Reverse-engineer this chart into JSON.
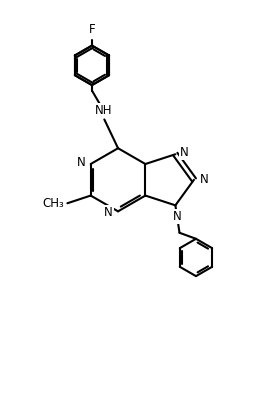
{
  "background_color": "#ffffff",
  "line_color": "#000000",
  "text_color": "#000000",
  "line_width": 1.5,
  "font_size": 8.5,
  "fig_width": 2.8,
  "fig_height": 3.98,
  "dpi": 100,
  "xlim": [
    0,
    10
  ],
  "ylim": [
    0,
    14.2
  ]
}
